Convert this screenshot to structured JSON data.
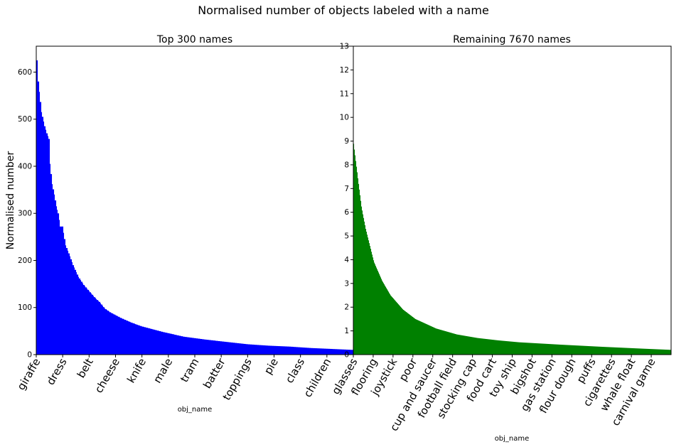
{
  "suptitle": "Normalised number of objects labeled with a name",
  "chart_data": [
    {
      "type": "bar",
      "title": "Top 300 names",
      "xlabel": "obj_name",
      "ylabel": "Normalised number",
      "color": "#0000ff",
      "n_bars": 300,
      "ylim": [
        0,
        655
      ],
      "yticks": [
        0,
        100,
        200,
        300,
        400,
        500,
        600
      ],
      "tick_labels": [
        "giraffe",
        "dress",
        "belt",
        "cheese",
        "knife",
        "male",
        "tram",
        "batter",
        "toppings",
        "pie",
        "class",
        "children"
      ],
      "profile": [
        [
          1,
          625
        ],
        [
          2,
          580
        ],
        [
          3,
          558
        ],
        [
          5,
          515
        ],
        [
          8,
          485
        ],
        [
          10,
          470
        ],
        [
          12,
          458
        ],
        [
          13,
          405
        ],
        [
          15,
          362
        ],
        [
          17,
          340
        ],
        [
          19,
          315
        ],
        [
          21,
          300
        ],
        [
          23,
          272
        ],
        [
          25,
          272
        ],
        [
          28,
          232
        ],
        [
          31,
          215
        ],
        [
          35,
          190
        ],
        [
          40,
          165
        ],
        [
          45,
          148
        ],
        [
          50,
          135
        ],
        [
          55,
          122
        ],
        [
          60,
          112
        ],
        [
          65,
          98
        ],
        [
          70,
          90
        ],
        [
          80,
          78
        ],
        [
          90,
          68
        ],
        [
          100,
          60
        ],
        [
          120,
          48
        ],
        [
          140,
          38
        ],
        [
          160,
          32
        ],
        [
          180,
          27
        ],
        [
          200,
          22
        ],
        [
          220,
          19
        ],
        [
          240,
          17
        ],
        [
          260,
          14
        ],
        [
          280,
          12
        ],
        [
          300,
          10
        ]
      ]
    },
    {
      "type": "bar",
      "title": "Remaining 7670 names",
      "xlabel": "obj_name",
      "ylabel": "",
      "color": "#008000",
      "n_bars": 7670,
      "ylim": [
        0,
        13
      ],
      "yticks": [
        0,
        1,
        2,
        3,
        4,
        5,
        6,
        7,
        8,
        9,
        10,
        11,
        12,
        13
      ],
      "tick_labels": [
        "glasses",
        "flooring",
        "joystick",
        "poor",
        "cup and saucer",
        "football field",
        "stocking cap",
        "food cart",
        "toy ship",
        "bigshot",
        "gas station",
        "flour dough",
        "puffs",
        "cigarettes",
        "whale float",
        "carnival game"
      ],
      "profile": [
        [
          1,
          9.0
        ],
        [
          50,
          8.3
        ],
        [
          100,
          7.6
        ],
        [
          200,
          6.2
        ],
        [
          300,
          5.3
        ],
        [
          500,
          3.9
        ],
        [
          700,
          3.1
        ],
        [
          900,
          2.5
        ],
        [
          1200,
          1.9
        ],
        [
          1500,
          1.5
        ],
        [
          2000,
          1.1
        ],
        [
          2500,
          0.85
        ],
        [
          3000,
          0.7
        ],
        [
          3500,
          0.6
        ],
        [
          4000,
          0.52
        ],
        [
          5000,
          0.42
        ],
        [
          6000,
          0.33
        ],
        [
          7000,
          0.25
        ],
        [
          7670,
          0.2
        ]
      ]
    }
  ]
}
